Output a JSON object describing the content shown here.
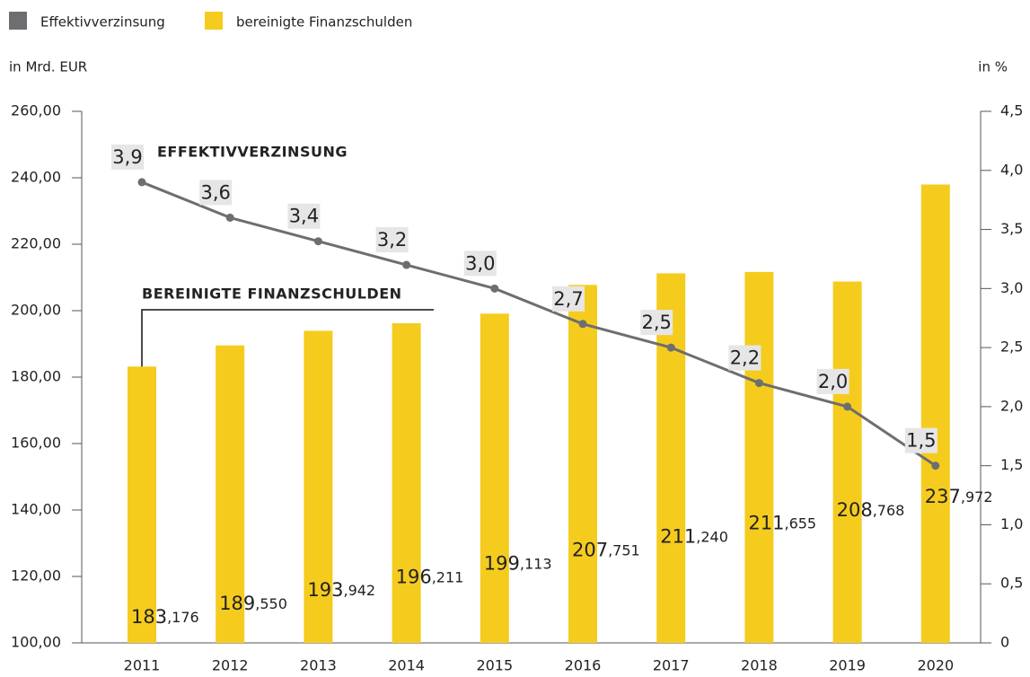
{
  "chart_data": {
    "type": "bar_line",
    "y_label": "in Mrd. EUR",
    "y2_label": "in %",
    "annotations": [
      "EFFEKTIVVERZINSUNG",
      "BEREINIGTE FINANZSCHULDEN"
    ],
    "categories": [
      "2011",
      "2012",
      "2013",
      "2014",
      "2015",
      "2016",
      "2017",
      "2018",
      "2019",
      "2020"
    ],
    "series": [
      {
        "name": "Effektivverzinsung",
        "color": "#6d6e70",
        "type": "line",
        "axis": "y2",
        "values": [
          3.9,
          3.6,
          3.4,
          3.2,
          3.0,
          2.7,
          2.5,
          2.2,
          2.0,
          1.5
        ],
        "value_labels": [
          "3,9",
          "3,6",
          "3,4",
          "3,2",
          "3,0",
          "2,7",
          "2,5",
          "2,2",
          "2,0",
          "1,5"
        ]
      },
      {
        "name": "bereinigte Finanzschulden",
        "color": "#f5cc1e",
        "type": "bar",
        "values": [
          183.176,
          189.55,
          193.942,
          196.211,
          199.113,
          207.751,
          211.24,
          211.655,
          208.768,
          237.972
        ],
        "value_labels": [
          "183,176",
          "189,550",
          "193,942",
          "196,211",
          "199,113",
          "207,751",
          "211,240",
          "211,655",
          "208,768",
          "237,972"
        ]
      }
    ],
    "ylim": [
      100,
      260
    ],
    "yticks": [
      {
        "value": 100,
        "label": "100,00"
      },
      {
        "value": 120,
        "label": "120,00"
      },
      {
        "value": 140,
        "label": "140,00"
      },
      {
        "value": 160,
        "label": "160,00"
      },
      {
        "value": 180,
        "label": "180,00"
      },
      {
        "value": 200,
        "label": "200,00"
      },
      {
        "value": 220,
        "label": "220,00"
      },
      {
        "value": 240,
        "label": "240,00"
      },
      {
        "value": 260,
        "label": "260,00"
      }
    ],
    "y2lim": [
      0,
      4.5
    ],
    "y2ticks": [
      0,
      {
        "value": 0.5,
        "label": "0,5"
      },
      {
        "value": 1,
        "label": "1,0"
      },
      {
        "value": 1.5,
        "label": "1,5"
      },
      {
        "value": 2,
        "label": "2,0"
      },
      {
        "value": 2.5,
        "label": "2,5"
      },
      {
        "value": 3,
        "label": "3,0"
      },
      {
        "value": 3.5,
        "label": "3,5"
      },
      {
        "value": 4,
        "label": "4,0"
      },
      {
        "value": 4.5,
        "label": "4,5"
      }
    ]
  }
}
